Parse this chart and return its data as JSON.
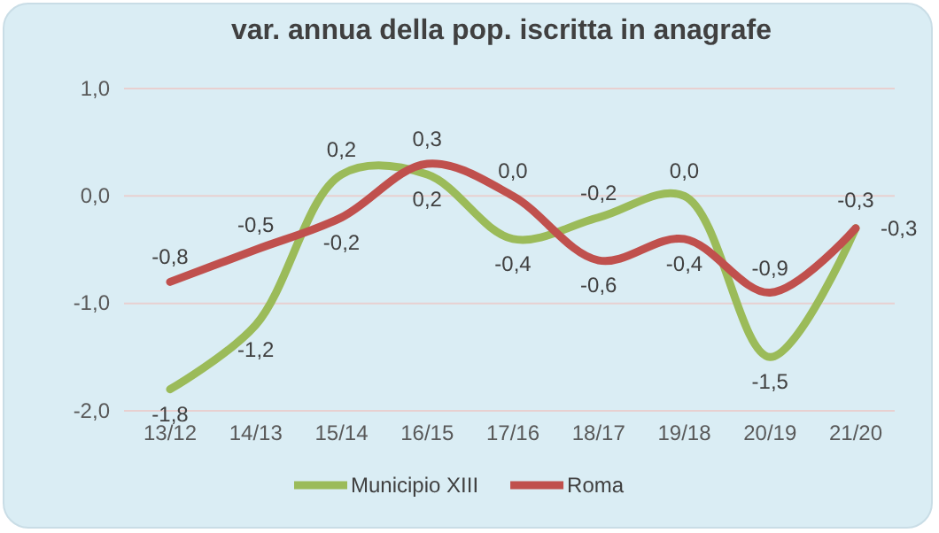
{
  "chart_data": {
    "type": "line",
    "title": "var. annua della pop. iscritta in anagrafe",
    "categories": [
      "13/12",
      "14/13",
      "15/14",
      "16/15",
      "17/16",
      "18/17",
      "19/18",
      "20/19",
      "21/20"
    ],
    "series": [
      {
        "name": "Municipio XIII",
        "color": "#9bbb59",
        "values": [
          -1.8,
          -1.2,
          0.2,
          0.2,
          -0.4,
          -0.2,
          0.0,
          -1.5,
          -0.3
        ],
        "value_labels": [
          "-1,8",
          "-1,2",
          "0,2",
          "0,2",
          "-0,4",
          "-0,2",
          "0,0",
          "-1,5",
          "-0,3"
        ]
      },
      {
        "name": "Roma",
        "color": "#c0504d",
        "values": [
          -0.8,
          -0.5,
          -0.2,
          0.3,
          0.0,
          -0.6,
          -0.4,
          -0.9,
          -0.3
        ],
        "value_labels": [
          "-0,8",
          "-0,5",
          "-0,2",
          "0,3",
          "0,0",
          "-0,6",
          "-0,4",
          "-0,9",
          "-0,3"
        ]
      }
    ],
    "ylim": [
      -2,
      1
    ],
    "yticks": [
      {
        "value": -2,
        "label": "-2,0"
      },
      {
        "value": -1,
        "label": "-1,0"
      },
      {
        "value": 0,
        "label": "0,0"
      },
      {
        "value": 1,
        "label": "1,0"
      }
    ],
    "grid": "y",
    "legend": "bottom",
    "marker": "none",
    "line_style": "solid"
  }
}
